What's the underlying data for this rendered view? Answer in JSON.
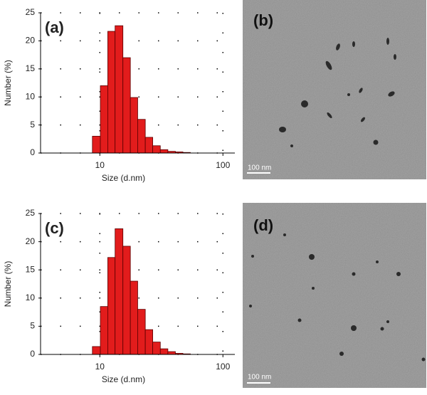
{
  "chart_data": [
    {
      "type": "histogram",
      "annotation": "(a)",
      "xlabel": "Size (d.nm)",
      "ylabel": "Number (%)",
      "bins": [
        8.7,
        10.1,
        11.6,
        13.3,
        15.4,
        17.7,
        20.3,
        23.4,
        26.9,
        31.0,
        35.7,
        41.1,
        47.3,
        54.4
      ],
      "values": [
        3,
        12,
        21.7,
        22.7,
        17,
        9.9,
        6,
        2.8,
        1.3,
        0.6,
        0.3,
        0.2,
        0.1
      ],
      "color": "#e21c1c",
      "log_x": true,
      "grid": true,
      "xlim": [
        3.3,
        125
      ],
      "ylim": [
        0,
        25
      ],
      "xticks": [
        10,
        100
      ],
      "yticks": [
        0,
        5,
        10,
        15,
        20,
        25
      ]
    },
    {
      "type": "histogram",
      "annotation": "(c)",
      "xlabel": "Size (d.nm)",
      "ylabel": "Number (%)",
      "bins": [
        8.7,
        10.1,
        11.6,
        13.3,
        15.4,
        17.7,
        20.3,
        23.4,
        26.9,
        31.0,
        35.7,
        41.1,
        47.3,
        54.4
      ],
      "values": [
        1.4,
        8.5,
        17.2,
        22.3,
        19.2,
        13,
        8,
        4.4,
        2.2,
        1,
        0.5,
        0.2,
        0.1
      ],
      "color": "#e21c1c",
      "log_x": true,
      "grid": true,
      "xlim": [
        3.3,
        125
      ],
      "ylim": [
        0,
        25
      ],
      "xticks": [
        10,
        100
      ],
      "yticks": [
        0,
        5,
        10,
        15,
        20,
        25
      ]
    }
  ],
  "images": [
    {
      "label": "(b)",
      "scale_bar": "100 nm"
    },
    {
      "label": "(d)",
      "scale_bar": "100 nm"
    }
  ]
}
